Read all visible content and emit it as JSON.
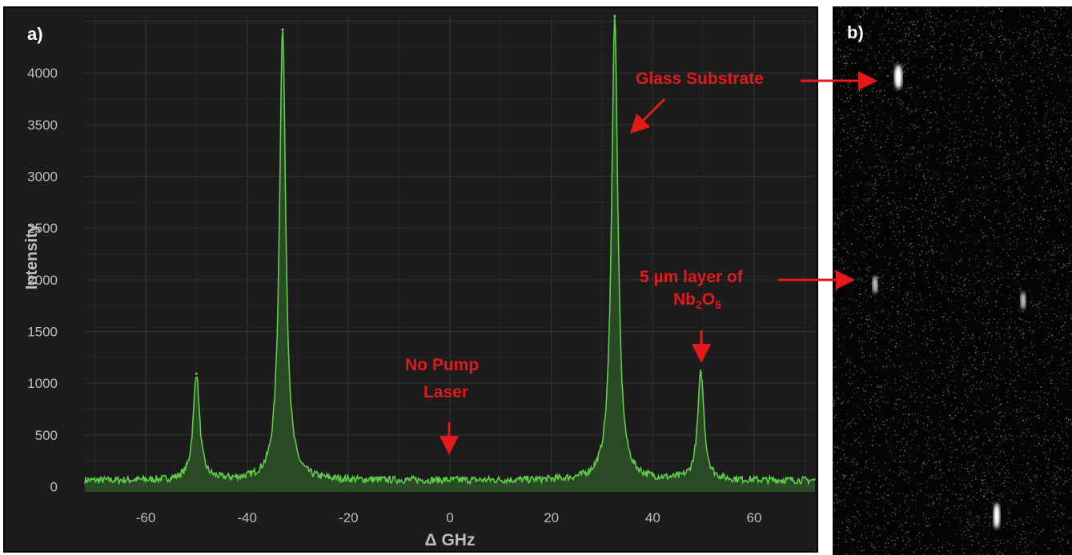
{
  "panels": {
    "a_label": "a)",
    "b_label": "b)"
  },
  "annotations": {
    "glass_substrate": "Glass Substrate",
    "layer_line1": "5 µm layer of",
    "layer_formula": "Nb2O5",
    "no_pump_line1": "No Pump",
    "no_pump_line2": "Laser"
  },
  "colors": {
    "panel_bg": "#1c1c1c",
    "grid": "#2e2e2e",
    "series_line": "#5fcc4a",
    "series_fill": "#2f5a28",
    "axis_text": "#bdbdbd",
    "annotation": "#e3191a"
  },
  "chart_data": {
    "type": "line",
    "title": "",
    "xlabel": "Δ GHz",
    "ylabel": "Intensity",
    "xlim": [
      -72,
      72
    ],
    "ylim": [
      -50,
      4550
    ],
    "xticks": [
      -60,
      -40,
      -20,
      0,
      20,
      40,
      60
    ],
    "yticks": [
      0,
      500,
      1000,
      1500,
      2000,
      2500,
      3000,
      3500,
      4000
    ],
    "grid": true,
    "baseline": 60,
    "peaks": [
      {
        "x": -50.0,
        "y": 1090
      },
      {
        "x": -33.0,
        "y": 4420
      },
      {
        "x": 32.5,
        "y": 4550
      },
      {
        "x": 49.5,
        "y": 1100
      }
    ],
    "series": [
      {
        "x": [
          -72,
          -60,
          -52,
          -50,
          -48,
          -40,
          -35,
          -33,
          -31,
          -25,
          -10,
          0,
          10,
          25,
          30.5,
          32.5,
          34.5,
          42,
          47.5,
          49.5,
          51.5,
          60,
          72
        ],
        "values": [
          60,
          65,
          90,
          1090,
          100,
          70,
          120,
          4420,
          130,
          60,
          75,
          100,
          55,
          50,
          120,
          4550,
          130,
          60,
          100,
          1100,
          90,
          55,
          30
        ]
      }
    ]
  }
}
